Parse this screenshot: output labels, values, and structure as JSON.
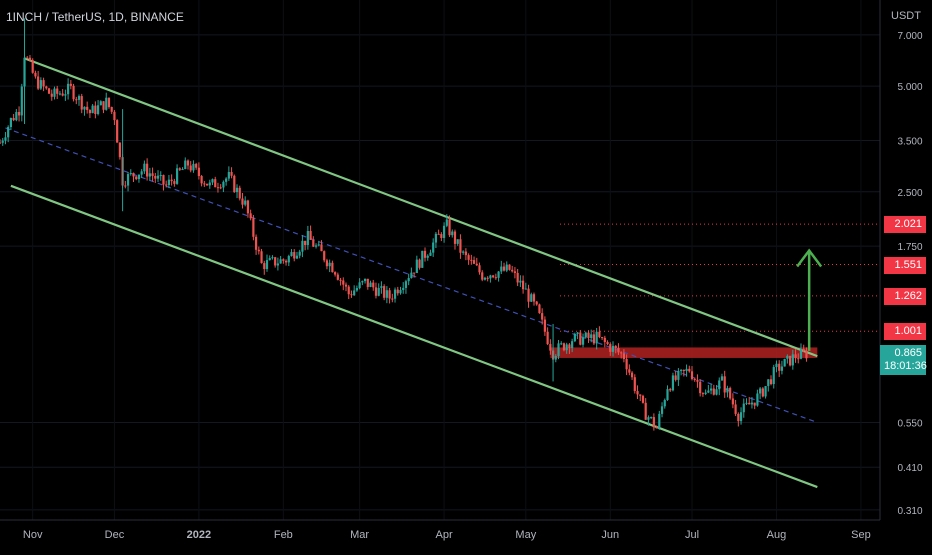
{
  "header": {
    "symbol_title": "1INCH / TetherUS, 1D, BINANCE"
  },
  "axis": {
    "currency": "USDT"
  },
  "chart_data": {
    "type": "candlestick",
    "title": "1INCH / TetherUS, 1D, BINANCE",
    "y_scale": "log",
    "ylim": [
      0.29,
      8.8
    ],
    "xlim": [
      "2021-10-20",
      "2022-09-08"
    ],
    "y_ticks": [
      {
        "value": 7.0,
        "label": "7.000"
      },
      {
        "value": 5.0,
        "label": "5.000"
      },
      {
        "value": 3.5,
        "label": "3.500"
      },
      {
        "value": 2.5,
        "label": "2.500"
      },
      {
        "value": 1.75,
        "label": "1.750"
      },
      {
        "value": 0.55,
        "label": "0.550"
      },
      {
        "value": 0.41,
        "label": "0.410"
      },
      {
        "value": 0.31,
        "label": "0.310"
      }
    ],
    "x_ticks": [
      {
        "date": "2021-11-01",
        "label": "Nov"
      },
      {
        "date": "2021-12-01",
        "label": "Dec"
      },
      {
        "date": "2022-01-01",
        "label": "2022"
      },
      {
        "date": "2022-02-01",
        "label": "Feb"
      },
      {
        "date": "2022-03-01",
        "label": "Mar"
      },
      {
        "date": "2022-04-01",
        "label": "Apr"
      },
      {
        "date": "2022-05-01",
        "label": "May"
      },
      {
        "date": "2022-06-01",
        "label": "Jun"
      },
      {
        "date": "2022-07-01",
        "label": "Jul"
      },
      {
        "date": "2022-08-01",
        "label": "Aug"
      },
      {
        "date": "2022-09-01",
        "label": "Sep"
      }
    ],
    "price_levels": [
      {
        "value": 2.021,
        "label": "2.021",
        "color": "#f23645"
      },
      {
        "value": 1.551,
        "label": "1.551",
        "color": "#f23645"
      },
      {
        "value": 1.262,
        "label": "1.262",
        "color": "#f23645"
      },
      {
        "value": 1.001,
        "label": "1.001",
        "color": "#f23645"
      }
    ],
    "current_price": {
      "value": 0.865,
      "label": "0.865",
      "countdown": "18:01:36",
      "color": "#26a69a"
    },
    "price_path": [
      [
        "2021-10-20",
        3.45
      ],
      [
        "2021-10-24",
        4.0
      ],
      [
        "2021-10-27",
        4.3
      ],
      [
        "2021-10-29",
        6.2
      ],
      [
        "2021-11-02",
        5.2
      ],
      [
        "2021-11-08",
        4.7
      ],
      [
        "2021-11-15",
        4.9
      ],
      [
        "2021-11-22",
        4.2
      ],
      [
        "2021-11-28",
        4.5
      ],
      [
        "2021-12-01",
        4.1
      ],
      [
        "2021-12-04",
        2.7
      ],
      [
        "2021-12-12",
        2.9
      ],
      [
        "2021-12-20",
        2.6
      ],
      [
        "2021-12-28",
        3.0
      ],
      [
        "2022-01-05",
        2.6
      ],
      [
        "2022-01-12",
        2.75
      ],
      [
        "2022-01-18",
        2.3
      ],
      [
        "2022-01-24",
        1.55
      ],
      [
        "2022-02-02",
        1.6
      ],
      [
        "2022-02-10",
        1.85
      ],
      [
        "2022-02-20",
        1.5
      ],
      [
        "2022-02-25",
        1.28
      ],
      [
        "2022-03-03",
        1.38
      ],
      [
        "2022-03-12",
        1.25
      ],
      [
        "2022-03-22",
        1.55
      ],
      [
        "2022-04-02",
        2.0
      ],
      [
        "2022-04-08",
        1.65
      ],
      [
        "2022-04-15",
        1.45
      ],
      [
        "2022-04-25",
        1.5
      ],
      [
        "2022-05-01",
        1.3
      ],
      [
        "2022-05-05",
        1.15
      ],
      [
        "2022-05-11",
        0.87
      ],
      [
        "2022-05-18",
        0.95
      ],
      [
        "2022-05-27",
        0.96
      ],
      [
        "2022-06-06",
        0.85
      ],
      [
        "2022-06-13",
        0.6
      ],
      [
        "2022-06-18",
        0.53
      ],
      [
        "2022-06-22",
        0.7
      ],
      [
        "2022-06-30",
        0.78
      ],
      [
        "2022-07-06",
        0.66
      ],
      [
        "2022-07-12",
        0.72
      ],
      [
        "2022-07-18",
        0.58
      ],
      [
        "2022-07-26",
        0.66
      ],
      [
        "2022-08-01",
        0.78
      ],
      [
        "2022-08-08",
        0.85
      ],
      [
        "2022-08-12",
        0.865
      ]
    ],
    "trendlines": [
      {
        "role": "channel-upper",
        "color": "#81c784",
        "style": "solid",
        "from": [
          "2021-10-29",
          6.0
        ],
        "to": [
          "2022-08-16",
          0.85
        ]
      },
      {
        "role": "channel-lower",
        "color": "#81c784",
        "style": "solid",
        "from": [
          "2021-10-24",
          2.6
        ],
        "to": [
          "2022-08-16",
          0.36
        ]
      },
      {
        "role": "channel-mid",
        "color": "#3f51b5",
        "style": "dashed",
        "from": [
          "2021-10-22",
          3.8
        ],
        "to": [
          "2022-08-16",
          0.55
        ]
      }
    ],
    "resistance_zone": {
      "from_date": "2022-05-10",
      "to_date": "2022-08-16",
      "low": 0.84,
      "high": 0.9,
      "color": "#b22222"
    },
    "target_arrow": {
      "date": "2022-08-13",
      "from": 0.88,
      "to": 1.7,
      "color": "#4caf50"
    }
  }
}
